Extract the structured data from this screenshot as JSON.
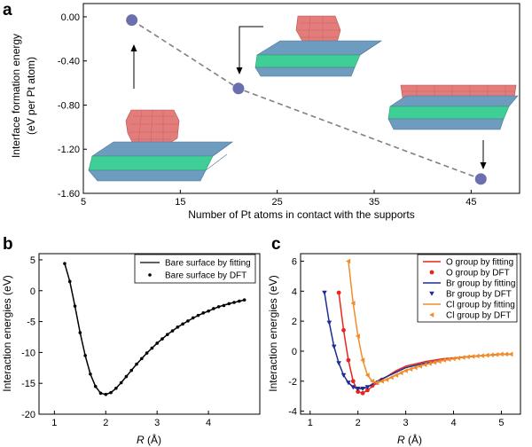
{
  "chart_data": [
    {
      "panel": "a",
      "type": "scatter",
      "xlabel": "Number of Pt atoms in contact with the supports",
      "ylabel_line1": "Interface formation energy",
      "ylabel_line2": "(eV per Pt atom)",
      "xlim": [
        5,
        50
      ],
      "ylim": [
        -1.6,
        0.12
      ],
      "xticks": [
        5,
        15,
        25,
        35,
        45
      ],
      "yticks": [
        0.0,
        -0.4,
        -0.8,
        -1.2,
        -1.6
      ],
      "ytick_labels": [
        "0.00",
        "-0.40",
        "-0.80",
        "-1.20",
        "-1.60"
      ],
      "x": [
        10,
        21,
        46
      ],
      "y": [
        -0.03,
        -0.65,
        -1.47
      ],
      "marker_color": "#6b6fae",
      "line_color": "#808080"
    },
    {
      "panel": "b",
      "type": "line",
      "xlabel_italic": "R",
      "xlabel_unit": " (Å)",
      "ylabel": "Interaction energies (eV)",
      "xlim": [
        0.7,
        5.0
      ],
      "ylim": [
        -20,
        6
      ],
      "xticks": [
        1,
        2,
        3,
        4
      ],
      "yticks": [
        5,
        0,
        -5,
        -10,
        -15,
        -20
      ],
      "series": [
        {
          "name": "Bare surface by fitting",
          "style": "line",
          "color": "#000000",
          "x": [
            1.2,
            1.3,
            1.4,
            1.5,
            1.6,
            1.7,
            1.8,
            1.9,
            2.0,
            2.1,
            2.2,
            2.3,
            2.4,
            2.5,
            2.6,
            2.7,
            2.8,
            2.9,
            3.0,
            3.2,
            3.4,
            3.6,
            3.8,
            4.0,
            4.2,
            4.4,
            4.7
          ],
          "y": [
            4.4,
            1.5,
            -2.5,
            -6.8,
            -10.5,
            -13.5,
            -15.5,
            -16.6,
            -16.8,
            -16.5,
            -15.8,
            -14.9,
            -13.9,
            -12.9,
            -11.9,
            -11.0,
            -10.1,
            -9.3,
            -8.5,
            -7.1,
            -5.9,
            -4.9,
            -4.0,
            -3.3,
            -2.6,
            -2.1,
            -1.5
          ]
        },
        {
          "name": "Bare surface by DFT",
          "style": "points",
          "color": "#000000",
          "x": [
            1.2,
            1.3,
            1.4,
            1.5,
            1.6,
            1.7,
            1.8,
            1.9,
            2.0,
            2.1,
            2.2,
            2.3,
            2.4,
            2.5,
            2.6,
            2.7,
            2.8,
            2.9,
            3.0,
            3.1,
            3.2,
            3.3,
            3.4,
            3.5,
            3.6,
            3.7,
            3.8,
            3.9,
            4.0,
            4.1,
            4.2,
            4.3,
            4.4,
            4.5,
            4.6,
            4.7
          ],
          "y": [
            4.4,
            1.5,
            -2.5,
            -6.8,
            -10.5,
            -13.5,
            -15.5,
            -16.6,
            -16.8,
            -16.5,
            -15.8,
            -14.9,
            -13.9,
            -12.9,
            -11.9,
            -11.0,
            -10.1,
            -9.3,
            -8.5,
            -7.8,
            -7.1,
            -6.5,
            -5.9,
            -5.4,
            -4.9,
            -4.4,
            -4.0,
            -3.6,
            -3.3,
            -2.9,
            -2.6,
            -2.4,
            -2.1,
            -1.9,
            -1.7,
            -1.5
          ]
        }
      ]
    },
    {
      "panel": "c",
      "type": "line",
      "xlabel_italic": "R",
      "xlabel_unit": " (Å)",
      "ylabel": "Interaction energies (eV)",
      "xlim": [
        0.8,
        5.4
      ],
      "ylim": [
        -4.2,
        6.5
      ],
      "xticks": [
        1,
        2,
        3,
        4,
        5
      ],
      "yticks": [
        6,
        4,
        2,
        0,
        -2,
        -4
      ],
      "series": [
        {
          "name": "O group by fitting",
          "style": "line",
          "color": "#e8251f",
          "x": [
            1.6,
            1.7,
            1.8,
            1.9,
            2.0,
            2.1,
            2.2,
            2.4,
            2.6,
            2.8,
            3.0,
            3.4,
            3.8,
            4.2,
            4.6,
            5.0,
            5.2
          ],
          "y": [
            3.9,
            1.4,
            -0.6,
            -2.0,
            -2.7,
            -2.8,
            -2.6,
            -2.1,
            -1.7,
            -1.3,
            -1.0,
            -0.7,
            -0.5,
            -0.4,
            -0.3,
            -0.2,
            -0.2
          ]
        },
        {
          "name": "O group by DFT",
          "style": "circles",
          "color": "#e8251f",
          "x": [
            1.6,
            1.7,
            1.8,
            1.9,
            2.0,
            2.1,
            2.2,
            2.3,
            2.4,
            2.5
          ],
          "y": [
            3.9,
            1.4,
            -0.6,
            -2.0,
            -2.7,
            -2.8,
            -2.6,
            -2.3,
            -2.1,
            -1.9
          ]
        },
        {
          "name": "Br group by fitting",
          "style": "line",
          "color": "#1c2d8f",
          "x": [
            1.3,
            1.4,
            1.5,
            1.6,
            1.7,
            1.8,
            1.9,
            2.0,
            2.1,
            2.2,
            2.4,
            2.6,
            2.8,
            3.0,
            3.4,
            3.8,
            4.2,
            4.6,
            5.0,
            5.2
          ],
          "y": [
            3.9,
            1.9,
            0.3,
            -0.8,
            -1.6,
            -2.1,
            -2.4,
            -2.5,
            -2.5,
            -2.4,
            -2.0,
            -1.7,
            -1.4,
            -1.1,
            -0.8,
            -0.6,
            -0.4,
            -0.3,
            -0.2,
            -0.2
          ]
        },
        {
          "name": "Br group by DFT",
          "style": "triangles-down",
          "color": "#1c2d8f",
          "x": [
            1.3,
            1.4,
            1.5,
            1.6,
            1.7,
            1.8,
            1.9,
            2.0,
            2.1,
            2.2
          ],
          "y": [
            3.9,
            1.9,
            0.3,
            -0.8,
            -1.6,
            -2.1,
            -2.4,
            -2.5,
            -2.5,
            -2.4
          ]
        },
        {
          "name": "Cl group by fitting",
          "style": "line",
          "color": "#f28c28",
          "x": [
            1.8,
            1.9,
            2.0,
            2.1,
            2.2,
            2.3,
            2.4,
            2.6,
            2.8,
            3.0,
            3.2,
            3.4,
            3.6,
            3.8,
            4.0,
            4.2,
            4.4,
            4.6,
            4.8,
            5.0,
            5.2
          ],
          "y": [
            6.0,
            3.2,
            1.0,
            -0.6,
            -1.6,
            -2.0,
            -2.1,
            -1.9,
            -1.6,
            -1.3,
            -1.1,
            -0.9,
            -0.75,
            -0.6,
            -0.5,
            -0.42,
            -0.35,
            -0.3,
            -0.25,
            -0.2,
            -0.2
          ]
        },
        {
          "name": "Cl group by DFT",
          "style": "triangles-left",
          "color": "#f28c28",
          "x": [
            1.8,
            1.9,
            2.0,
            2.1,
            2.2,
            2.3,
            2.4,
            2.5,
            2.6,
            2.7,
            2.8,
            2.9,
            3.0,
            3.1,
            3.2,
            3.3,
            3.4,
            3.5,
            3.6,
            3.7,
            3.8,
            3.9,
            4.0,
            4.1,
            4.2,
            4.3,
            4.4,
            4.5,
            4.6,
            4.7,
            4.8,
            4.9,
            5.0,
            5.1,
            5.2
          ],
          "y": [
            6.0,
            3.2,
            1.0,
            -0.6,
            -1.6,
            -2.0,
            -2.1,
            -2.0,
            -1.9,
            -1.75,
            -1.6,
            -1.45,
            -1.3,
            -1.2,
            -1.1,
            -1.0,
            -0.9,
            -0.82,
            -0.75,
            -0.68,
            -0.6,
            -0.55,
            -0.5,
            -0.46,
            -0.42,
            -0.38,
            -0.35,
            -0.32,
            -0.3,
            -0.27,
            -0.25,
            -0.23,
            -0.2,
            -0.2,
            -0.2
          ]
        }
      ]
    }
  ],
  "molecular_illustrations": [
    "Pt cluster on support (initial)",
    "Pt cluster on support (intermediate)",
    "Pt cluster on support (final)"
  ],
  "colors": {
    "pt": "#e27d7b",
    "support_blue": "#6e9cbf",
    "support_green": "#3fcf96"
  }
}
